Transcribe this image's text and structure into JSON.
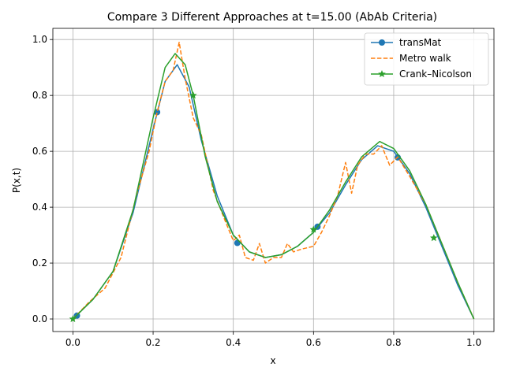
{
  "chart_data": {
    "type": "line",
    "title": "Compare 3 Different Approaches at t=15.00 (AbAb Criteria)",
    "xlabel": "x",
    "ylabel": "P(x,t)",
    "xlim": [
      -0.05,
      1.05
    ],
    "ylim": [
      -0.045,
      1.04
    ],
    "xticks": [
      "0.0",
      "0.2",
      "0.4",
      "0.6",
      "0.8",
      "1.0"
    ],
    "yticks": [
      "0.0",
      "0.2",
      "0.4",
      "0.6",
      "0.8",
      "1.0"
    ],
    "grid": true,
    "legend_position": "top-right",
    "series": [
      {
        "name": "transMat",
        "color": "#1f77b4",
        "style": "solid",
        "marker": "circle",
        "markers": [
          [
            0.01,
            0.012
          ],
          [
            0.21,
            0.74
          ],
          [
            0.41,
            0.272
          ],
          [
            0.61,
            0.33
          ],
          [
            0.81,
            0.578
          ]
        ],
        "x": [
          0.0,
          0.05,
          0.1,
          0.15,
          0.2,
          0.23,
          0.26,
          0.29,
          0.32,
          0.36,
          0.4,
          0.44,
          0.48,
          0.52,
          0.56,
          0.6,
          0.64,
          0.68,
          0.72,
          0.76,
          0.8,
          0.84,
          0.88,
          0.92,
          0.96,
          1.0
        ],
        "y": [
          0.0,
          0.07,
          0.17,
          0.38,
          0.68,
          0.85,
          0.91,
          0.83,
          0.64,
          0.44,
          0.3,
          0.24,
          0.22,
          0.23,
          0.26,
          0.31,
          0.38,
          0.48,
          0.57,
          0.62,
          0.6,
          0.52,
          0.4,
          0.26,
          0.12,
          0.0
        ]
      },
      {
        "name": "Metro walk",
        "color": "#ff7f0e",
        "style": "dashed",
        "marker": "none",
        "markers": [],
        "x": [
          0.0,
          0.04,
          0.08,
          0.12,
          0.16,
          0.19,
          0.21,
          0.23,
          0.25,
          0.265,
          0.28,
          0.3,
          0.32,
          0.35,
          0.38,
          0.4,
          0.415,
          0.43,
          0.45,
          0.465,
          0.48,
          0.5,
          0.52,
          0.535,
          0.55,
          0.57,
          0.6,
          0.62,
          0.64,
          0.66,
          0.68,
          0.695,
          0.71,
          0.73,
          0.75,
          0.77,
          0.79,
          0.81,
          0.84,
          0.88,
          0.92,
          0.96,
          1.0
        ],
        "y": [
          0.0,
          0.06,
          0.11,
          0.22,
          0.45,
          0.6,
          0.74,
          0.85,
          0.89,
          0.99,
          0.86,
          0.72,
          0.66,
          0.46,
          0.35,
          0.28,
          0.3,
          0.22,
          0.21,
          0.27,
          0.2,
          0.22,
          0.22,
          0.27,
          0.24,
          0.25,
          0.26,
          0.31,
          0.37,
          0.44,
          0.56,
          0.45,
          0.55,
          0.59,
          0.59,
          0.62,
          0.55,
          0.58,
          0.51,
          0.41,
          0.27,
          0.13,
          0.0
        ]
      },
      {
        "name": "Crank–Nicolson",
        "color": "#2ca02c",
        "style": "solid",
        "marker": "star",
        "markers": [
          [
            0.0,
            0.0
          ],
          [
            0.3,
            0.8
          ],
          [
            0.6,
            0.32
          ],
          [
            0.9,
            0.29
          ]
        ],
        "x": [
          0.0,
          0.05,
          0.1,
          0.15,
          0.2,
          0.23,
          0.255,
          0.28,
          0.3,
          0.33,
          0.36,
          0.4,
          0.44,
          0.48,
          0.52,
          0.56,
          0.6,
          0.64,
          0.68,
          0.72,
          0.765,
          0.8,
          0.84,
          0.88,
          0.92,
          0.96,
          1.0
        ],
        "y": [
          0.0,
          0.07,
          0.17,
          0.39,
          0.72,
          0.9,
          0.95,
          0.91,
          0.8,
          0.58,
          0.42,
          0.3,
          0.24,
          0.22,
          0.23,
          0.26,
          0.31,
          0.39,
          0.49,
          0.58,
          0.635,
          0.61,
          0.53,
          0.41,
          0.27,
          0.13,
          0.0
        ]
      }
    ]
  }
}
